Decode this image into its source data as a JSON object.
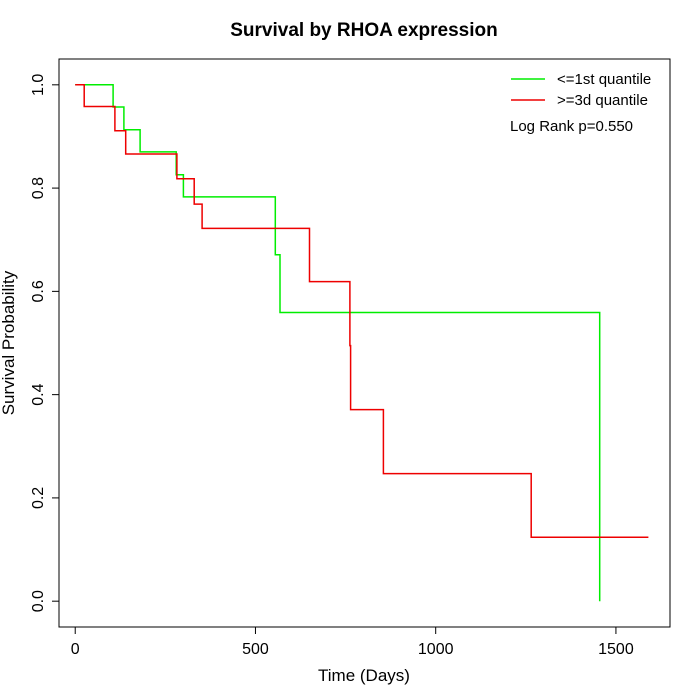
{
  "chart_data": {
    "type": "line",
    "step": true,
    "title": "Survival by RHOA expression",
    "xlabel": "Time (Days)",
    "ylabel": "Survival Probability",
    "xlim": [
      -45,
      1650
    ],
    "ylim": [
      -0.05,
      1.05
    ],
    "xticks": [
      0,
      500,
      1000,
      1500
    ],
    "yticks": [
      0.0,
      0.2,
      0.4,
      0.6,
      0.8,
      1.0
    ],
    "xtick_labels": [
      "0",
      "500",
      "1000",
      "1500"
    ],
    "ytick_labels": [
      "0.0",
      "0.2",
      "0.4",
      "0.6",
      "0.8",
      "1.0"
    ],
    "legend_position": "top-right",
    "annotation": "Log Rank p=0.550",
    "series": [
      {
        "name": "<=1st quantile",
        "color": "#00ee00",
        "points": [
          [
            0,
            1.0
          ],
          [
            105,
            1.0
          ],
          [
            105,
            0.957
          ],
          [
            135,
            0.957
          ],
          [
            135,
            0.913
          ],
          [
            180,
            0.913
          ],
          [
            180,
            0.87
          ],
          [
            280,
            0.87
          ],
          [
            280,
            0.826
          ],
          [
            300,
            0.826
          ],
          [
            300,
            0.783
          ],
          [
            555,
            0.783
          ],
          [
            555,
            0.671
          ],
          [
            568,
            0.671
          ],
          [
            568,
            0.559
          ],
          [
            1455,
            0.559
          ],
          [
            1455,
            0.0
          ]
        ]
      },
      {
        "name": ">=3d quantile",
        "color": "#ee0000",
        "points": [
          [
            0,
            1.0
          ],
          [
            25,
            1.0
          ],
          [
            25,
            0.958
          ],
          [
            110,
            0.958
          ],
          [
            110,
            0.911
          ],
          [
            140,
            0.911
          ],
          [
            140,
            0.866
          ],
          [
            282,
            0.866
          ],
          [
            282,
            0.818
          ],
          [
            330,
            0.818
          ],
          [
            330,
            0.769
          ],
          [
            352,
            0.769
          ],
          [
            352,
            0.722
          ],
          [
            650,
            0.722
          ],
          [
            650,
            0.619
          ],
          [
            762,
            0.619
          ],
          [
            762,
            0.495
          ],
          [
            764,
            0.495
          ],
          [
            764,
            0.371
          ],
          [
            855,
            0.371
          ],
          [
            855,
            0.247
          ],
          [
            1265,
            0.247
          ],
          [
            1265,
            0.124
          ],
          [
            1590,
            0.124
          ]
        ]
      }
    ]
  }
}
